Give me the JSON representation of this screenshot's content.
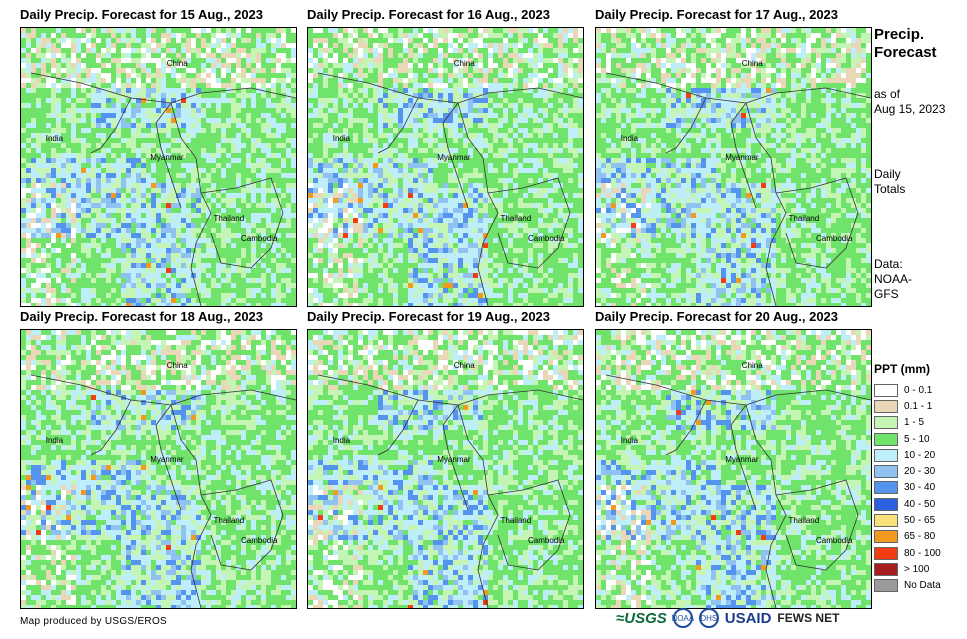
{
  "panels": [
    {
      "title": "Daily Precip. Forecast for 15 Aug., 2023"
    },
    {
      "title": "Daily Precip. Forecast for 16 Aug., 2023"
    },
    {
      "title": "Daily Precip. Forecast for 17 Aug., 2023"
    },
    {
      "title": "Daily Precip. Forecast for 18 Aug., 2023"
    },
    {
      "title": "Daily Precip. Forecast for 19 Aug., 2023"
    },
    {
      "title": "Daily Precip. Forecast for 20 Aug., 2023"
    }
  ],
  "map_labels": {
    "china": "China",
    "india": "India",
    "myanmar": "Myanmar",
    "thailand": "Thailand",
    "cambodia": "Cambodia"
  },
  "sidebar": {
    "title_line1": "Precip.",
    "title_line2": "Forecast",
    "asof_line1": "as of",
    "asof_line2": "Aug 15, 2023",
    "daily_line1": "Daily",
    "daily_line2": "Totals",
    "data_line1": "Data:",
    "data_line2": "NOAA-",
    "data_line3": "GFS"
  },
  "legend": {
    "title": "PPT (mm)",
    "items": [
      {
        "label": "0 - 0.1",
        "color": "#ffffff"
      },
      {
        "label": "0.1 - 1",
        "color": "#ead7b8"
      },
      {
        "label": "1 - 5",
        "color": "#c4f5b4"
      },
      {
        "label": "5 - 10",
        "color": "#6fe36a"
      },
      {
        "label": "10 - 20",
        "color": "#bfeefb"
      },
      {
        "label": "20 - 30",
        "color": "#8fc2f0"
      },
      {
        "label": "30 - 40",
        "color": "#5594ee"
      },
      {
        "label": "40 - 50",
        "color": "#2a5fe0"
      },
      {
        "label": "50 - 65",
        "color": "#f7e27a"
      },
      {
        "label": "65 - 80",
        "color": "#f29a1f"
      },
      {
        "label": "80 - 100",
        "color": "#f23c12"
      },
      {
        "label": "> 100",
        "color": "#a51f1f"
      },
      {
        "label": "No Data",
        "color": "#9a9a9a"
      }
    ]
  },
  "footer": {
    "credit": "Map produced by USGS/EROS",
    "logo_usgs": "≈USGS",
    "logo_noaa": "NOAA",
    "logo_dhs": "DHS",
    "logo_usaid": "USAID",
    "logo_fews": "FEWS NET"
  }
}
